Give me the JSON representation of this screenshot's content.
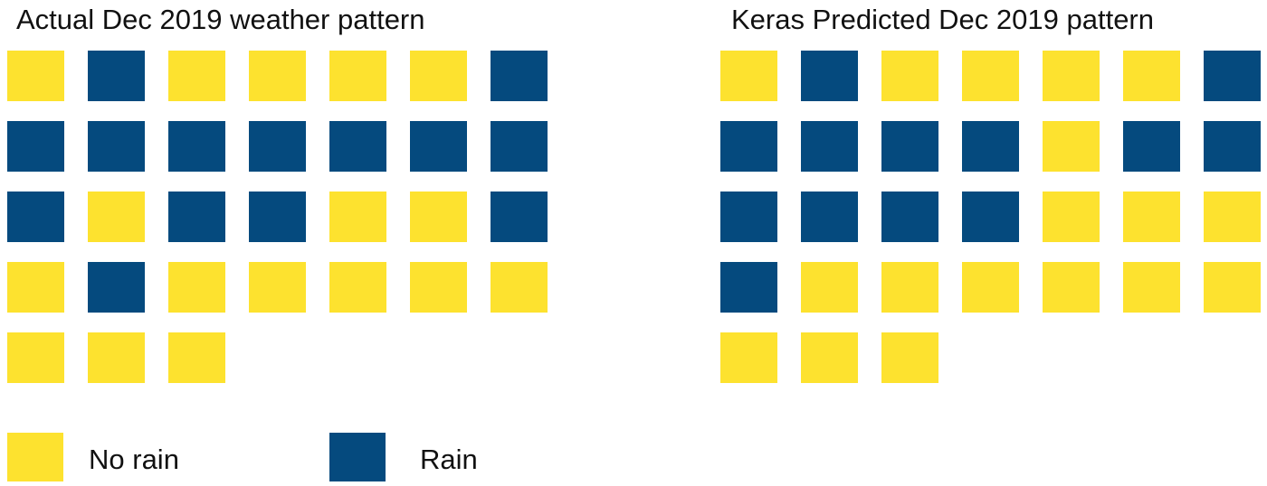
{
  "colors": {
    "no_rain": "#fde22f",
    "rain": "#054a7e"
  },
  "legend": {
    "no_rain_label": "No rain",
    "rain_label": "Rain"
  },
  "chart_data": [
    {
      "type": "heatmap",
      "title": "Actual Dec 2019 weather pattern",
      "columns": 7,
      "days": [
        0,
        1,
        0,
        0,
        0,
        0,
        1,
        1,
        1,
        1,
        1,
        1,
        1,
        1,
        1,
        0,
        1,
        1,
        0,
        0,
        1,
        0,
        1,
        0,
        0,
        0,
        0,
        0,
        0,
        0,
        0
      ],
      "value_legend": {
        "0": "No rain",
        "1": "Rain"
      }
    },
    {
      "type": "heatmap",
      "title": "Keras Predicted Dec 2019 pattern",
      "columns": 7,
      "days": [
        0,
        1,
        0,
        0,
        0,
        0,
        1,
        1,
        1,
        1,
        1,
        0,
        1,
        1,
        1,
        1,
        1,
        1,
        0,
        0,
        0,
        1,
        0,
        0,
        0,
        0,
        0,
        0,
        0,
        0,
        0
      ],
      "value_legend": {
        "0": "No rain",
        "1": "Rain"
      }
    }
  ]
}
